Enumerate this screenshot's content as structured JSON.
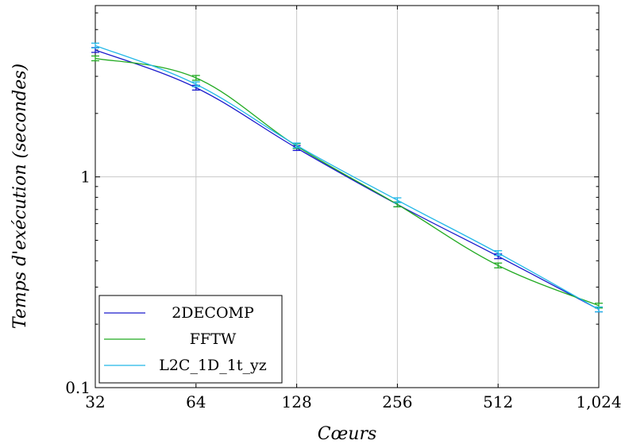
{
  "chart_data": {
    "type": "line",
    "title": "",
    "xlabel": "Cœurs",
    "ylabel": "Temps d'exécution (secondes)",
    "x_scale": "log2",
    "y_scale": "log10",
    "x": [
      32,
      64,
      128,
      256,
      512,
      1024
    ],
    "x_tick_labels": [
      "32",
      "64",
      "128",
      "256",
      "512",
      "1,024"
    ],
    "y_ticks": [
      0.1,
      1
    ],
    "y_tick_labels": [
      "0.1",
      "1"
    ],
    "xlim": [
      32,
      1024
    ],
    "ylim": [
      0.1,
      6.5
    ],
    "grid": true,
    "legend_position": "bottom-left",
    "series": [
      {
        "name": "2DECOMP",
        "color": "#1a1acc",
        "values": [
          4.0,
          2.65,
          1.37,
          0.74,
          0.42,
          0.235
        ]
      },
      {
        "name": "FFTW",
        "color": "#22aa22",
        "values": [
          3.65,
          2.95,
          1.4,
          0.74,
          0.38,
          0.245
        ]
      },
      {
        "name": "L2C_1D_1t_yz",
        "color": "#22b8e8",
        "values": [
          4.2,
          2.75,
          1.41,
          0.775,
          0.435,
          0.235
        ]
      }
    ],
    "legend_labels": [
      "2DECOMP",
      "FFTW",
      "L2C_1D_1t_yz"
    ]
  }
}
